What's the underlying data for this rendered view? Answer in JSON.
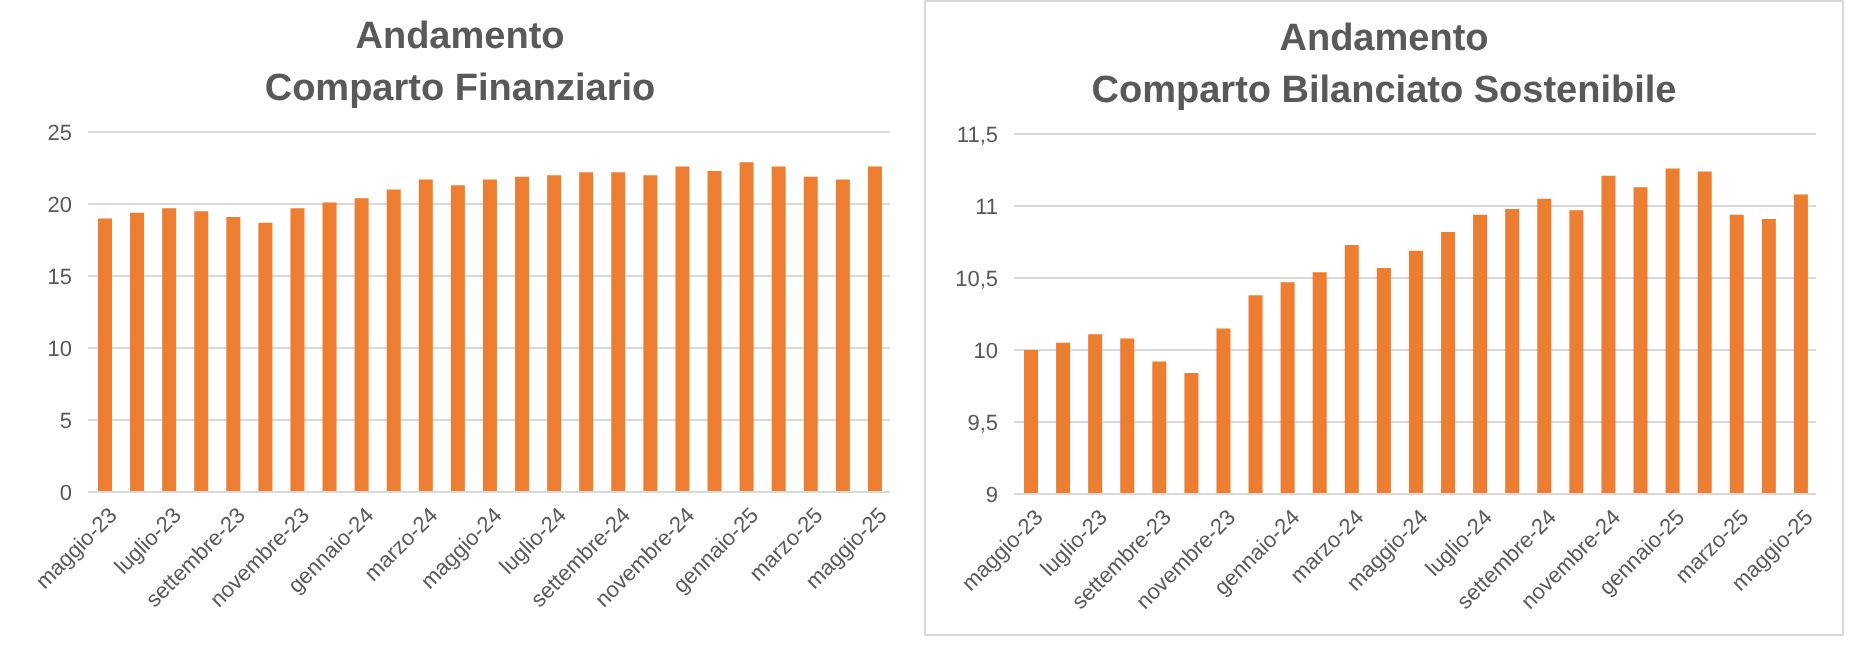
{
  "chart_data": [
    {
      "type": "bar",
      "title": "Andamento\nComparto Finanziario",
      "categories": [
        "maggio-23",
        null,
        "luglio-23",
        null,
        "settembre-23",
        null,
        "novembre-23",
        null,
        "gennaio-24",
        null,
        "marzo-24",
        null,
        "maggio-24",
        null,
        "luglio-24",
        null,
        "settembre-24",
        null,
        "novembre-24",
        null,
        "gennaio-25",
        null,
        "marzo-25",
        null,
        "maggio-25"
      ],
      "values": [
        19.0,
        19.4,
        19.7,
        19.5,
        19.1,
        18.7,
        19.7,
        20.1,
        20.4,
        21.0,
        21.7,
        21.3,
        21.7,
        21.9,
        22.0,
        22.2,
        22.2,
        22.0,
        22.6,
        22.3,
        22.9,
        22.6,
        21.9,
        21.7,
        22.6
      ],
      "color": "#ed7d31",
      "ylim": [
        0,
        25
      ],
      "yticks": [
        0,
        5,
        10,
        15,
        20,
        25
      ],
      "grid": "y",
      "legend": false
    },
    {
      "type": "bar",
      "title": "Andamento\nComparto Bilanciato Sostenibile",
      "categories": [
        "maggio-23",
        null,
        "luglio-23",
        null,
        "settembre-23",
        null,
        "novembre-23",
        null,
        "gennaio-24",
        null,
        "marzo-24",
        null,
        "maggio-24",
        null,
        "luglio-24",
        null,
        "settembre-24",
        null,
        "novembre-24",
        null,
        "gennaio-25",
        null,
        "marzo-25",
        null,
        "maggio-25"
      ],
      "values": [
        10.0,
        10.05,
        10.11,
        10.08,
        9.92,
        9.84,
        10.15,
        10.38,
        10.47,
        10.54,
        10.73,
        10.57,
        10.69,
        10.82,
        10.94,
        10.98,
        11.05,
        10.97,
        11.21,
        11.13,
        11.26,
        11.24,
        10.94,
        10.91,
        11.08
      ],
      "color": "#ed7d31",
      "ylim": [
        9,
        11.5
      ],
      "yticks": [
        {
          "value": 9,
          "label": "9"
        },
        {
          "value": 9.5,
          "label": "9,5"
        },
        {
          "value": 10,
          "label": "10"
        },
        {
          "value": 10.5,
          "label": "10,5"
        },
        {
          "value": 11,
          "label": "11"
        },
        {
          "value": 11.5,
          "label": "11,5"
        }
      ],
      "grid": "y",
      "legend": false
    }
  ]
}
